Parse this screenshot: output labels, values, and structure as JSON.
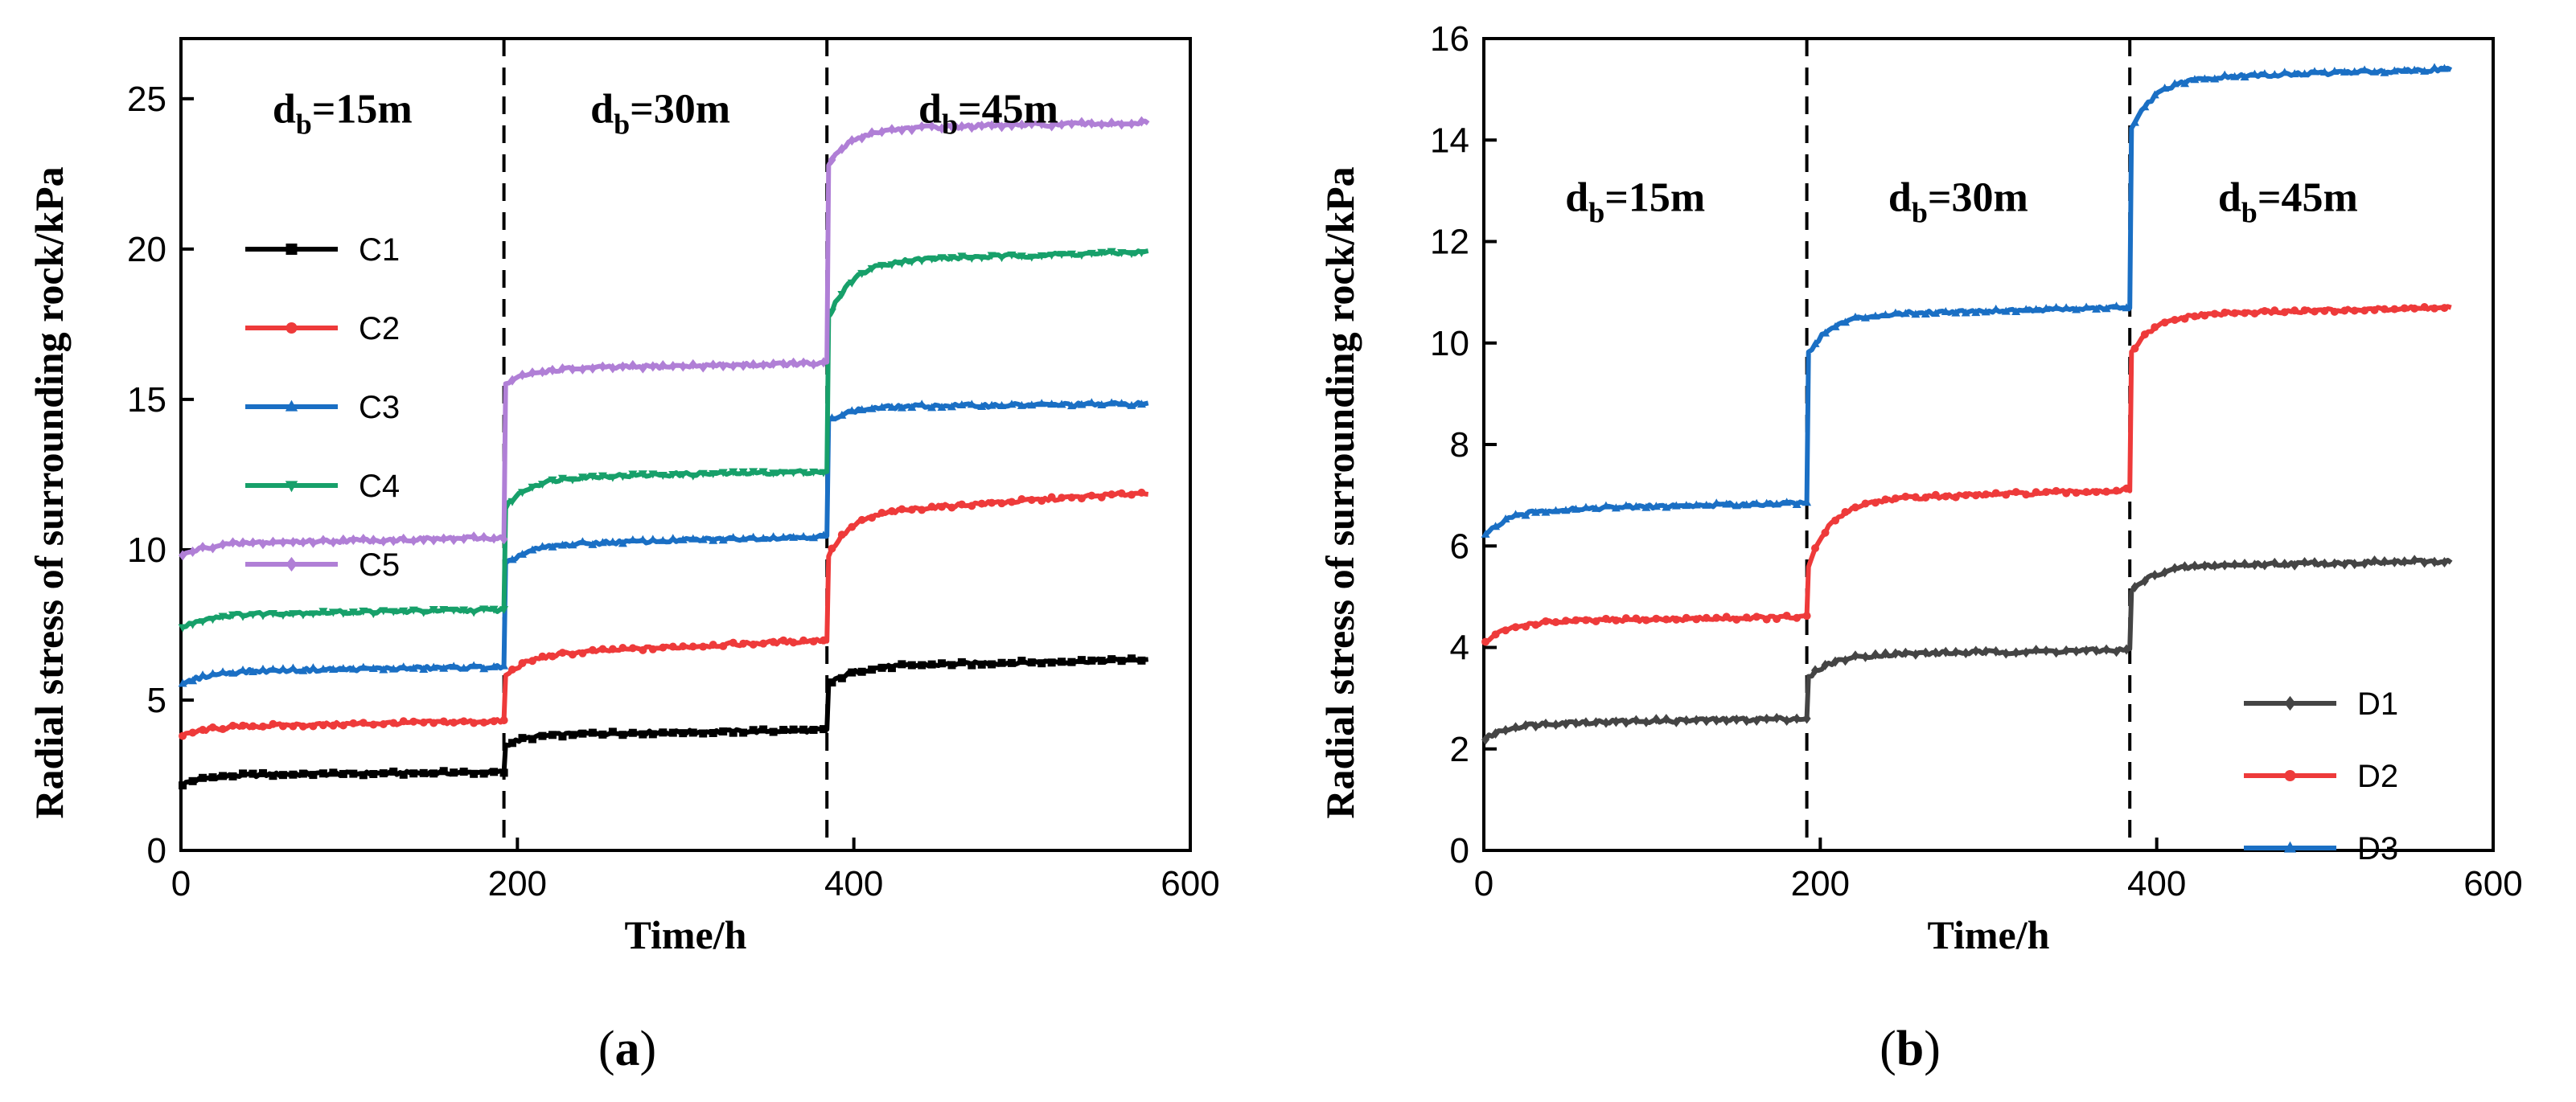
{
  "chart_data": [
    {
      "type": "line",
      "panel_label": "(a)",
      "panel_letter": "a",
      "xlabel": "Time/h",
      "ylabel": "Radial stress of surrounding rock/kPa",
      "xlim": [
        0,
        600
      ],
      "ylim": [
        0,
        27
      ],
      "xticks": [
        0,
        200,
        400,
        600
      ],
      "yticks": [
        0,
        5,
        10,
        15,
        20,
        25
      ],
      "stage_breaks": [
        192,
        384
      ],
      "stage_labels": [
        {
          "base": "d",
          "sub": "b",
          "rest": "=15m",
          "x": 96,
          "y": 24.2
        },
        {
          "base": "d",
          "sub": "b",
          "rest": "=30m",
          "x": 285,
          "y": 24.2
        },
        {
          "base": "d",
          "sub": "b",
          "rest": "=45m",
          "x": 480,
          "y": 24.2
        }
      ],
      "legend_position": "upper-left",
      "series": [
        {
          "name": "C1",
          "color": "#000000",
          "marker": "square",
          "stages": [
            [
              2.2,
              2.5,
              2.6
            ],
            [
              3.5,
              3.85,
              4.0
            ],
            [
              5.5,
              6.1,
              6.35
            ]
          ]
        },
        {
          "name": "C2",
          "color": "#ee3a3a",
          "marker": "circle",
          "stages": [
            [
              3.8,
              4.1,
              4.3
            ],
            [
              5.8,
              6.5,
              7.0
            ],
            [
              9.8,
              11.2,
              11.9
            ]
          ]
        },
        {
          "name": "C3",
          "color": "#1a6fc4",
          "marker": "triangle",
          "stages": [
            [
              5.5,
              5.95,
              6.1
            ],
            [
              9.5,
              10.15,
              10.45
            ],
            [
              14.3,
              14.75,
              14.85
            ]
          ]
        },
        {
          "name": "C4",
          "color": "#17a06a",
          "marker": "triangle-down",
          "stages": [
            [
              7.4,
              7.85,
              8.0
            ],
            [
              11.4,
              12.4,
              12.6
            ],
            [
              17.7,
              19.6,
              19.9
            ]
          ]
        },
        {
          "name": "C5",
          "color": "#b07fd6",
          "marker": "diamond",
          "stages": [
            [
              9.8,
              10.2,
              10.4
            ],
            [
              15.5,
              16.0,
              16.2
            ],
            [
              22.8,
              24.0,
              24.2
            ]
          ]
        }
      ]
    },
    {
      "type": "line",
      "panel_label": "(b)",
      "panel_letter": "b",
      "xlabel": "Time/h",
      "ylabel": "Radial stress of surrounding rock/kPa",
      "xlim": [
        0,
        600
      ],
      "ylim": [
        0,
        16
      ],
      "xticks": [
        0,
        200,
        400,
        600
      ],
      "yticks": [
        0,
        2,
        4,
        6,
        8,
        10,
        12,
        14,
        16
      ],
      "stage_breaks": [
        192,
        384
      ],
      "stage_labels": [
        {
          "base": "d",
          "sub": "b",
          "rest": "=15m",
          "x": 90,
          "y": 12.6
        },
        {
          "base": "d",
          "sub": "b",
          "rest": "=30m",
          "x": 282,
          "y": 12.6
        },
        {
          "base": "d",
          "sub": "b",
          "rest": "=45m",
          "x": 478,
          "y": 12.6
        }
      ],
      "legend_position": "lower-right",
      "series": [
        {
          "name": "D1",
          "color": "#444444",
          "marker": "diamond",
          "stages": [
            [
              2.2,
              2.5,
              2.6
            ],
            [
              3.4,
              3.85,
              3.95
            ],
            [
              5.1,
              5.6,
              5.7
            ]
          ]
        },
        {
          "name": "D2",
          "color": "#ee3a3a",
          "marker": "circle",
          "stages": [
            [
              4.1,
              4.5,
              4.6
            ],
            [
              5.6,
              6.9,
              7.1
            ],
            [
              9.8,
              10.55,
              10.7
            ]
          ]
        },
        {
          "name": "D3",
          "color": "#1a6fc4",
          "marker": "triangle",
          "stages": [
            [
              6.2,
              6.7,
              6.85
            ],
            [
              9.8,
              10.55,
              10.7
            ],
            [
              14.2,
              15.2,
              15.4
            ]
          ]
        }
      ]
    }
  ]
}
